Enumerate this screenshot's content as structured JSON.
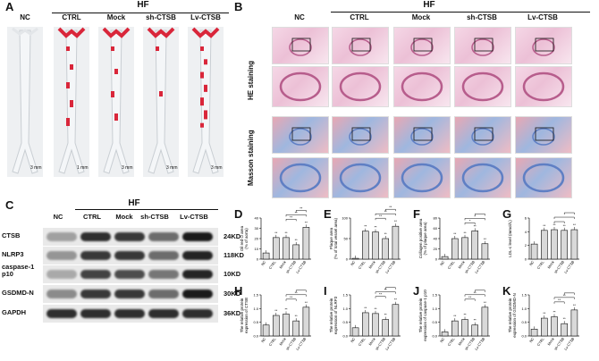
{
  "panelA": {
    "label": "A",
    "hf": "HF",
    "groups": [
      "NC",
      "CTRL",
      "Mock",
      "sh-CTSB",
      "Lv-CTSB"
    ],
    "scalebar": "3 mm",
    "scalebar_ctrl": "1 mm"
  },
  "panelB": {
    "label": "B",
    "hf": "HF",
    "groups": [
      "NC",
      "CTRL",
      "Mock",
      "sh-CTSB",
      "Lv-CTSB"
    ],
    "row1": "HE staining",
    "row2": "Masson staining"
  },
  "panelC": {
    "label": "C",
    "hf": "HF",
    "lanes": [
      "NC",
      "CTRL",
      "Mock",
      "sh-CTSB",
      "Lv-CTSB"
    ],
    "proteins": [
      {
        "name": "CTSB",
        "kd": "24KD",
        "intensity": [
          0.35,
          0.9,
          0.85,
          0.6,
          1.0
        ]
      },
      {
        "name": "NLRP3",
        "kd": "118KD",
        "intensity": [
          0.4,
          0.85,
          0.85,
          0.6,
          0.95
        ]
      },
      {
        "name": "caspase-1\np10",
        "kd": "10KD",
        "intensity": [
          0.3,
          0.8,
          0.75,
          0.55,
          0.95
        ]
      },
      {
        "name": "GSDMD-N",
        "kd": "30KD",
        "intensity": [
          0.45,
          0.85,
          0.85,
          0.6,
          1.0
        ]
      },
      {
        "name": "GAPDH",
        "kd": "36KD",
        "intensity": [
          0.9,
          0.9,
          0.9,
          0.9,
          0.9
        ]
      }
    ]
  },
  "chart_data": [
    {
      "label": "D",
      "type": "bar",
      "categories": [
        "NC",
        "CTRL",
        "Mock",
        "sh-CTSB",
        "Lv-CTSB"
      ],
      "values": [
        6,
        21,
        21,
        14,
        31
      ],
      "ylabel": "Oil red O area\n(% of aorta)",
      "ylim": [
        0,
        40
      ],
      "yticks": [
        0,
        10,
        20,
        30,
        40
      ],
      "sig": [
        "**",
        "**",
        "**",
        "**"
      ]
    },
    {
      "label": "E",
      "type": "bar",
      "categories": [
        "NC",
        "CTRL",
        "Mock",
        "sh-CTSB",
        "Lv-CTSB"
      ],
      "values": [
        2,
        68,
        66,
        50,
        80
      ],
      "ylabel": "Plaque area\n(% of total vessel area)",
      "ylim": [
        0,
        100
      ],
      "yticks": [
        0,
        50,
        100
      ],
      "sig": [
        "**",
        "**",
        "**",
        "**"
      ]
    },
    {
      "label": "F",
      "type": "bar",
      "categories": [
        "NC",
        "CTRL",
        "Mock",
        "sh-CTSB",
        "Lv-CTSB"
      ],
      "values": [
        5,
        40,
        42,
        55,
        30
      ],
      "ylabel": "Collagen positive area\n(% of plaque area)",
      "ylim": [
        0,
        80
      ],
      "yticks": [
        0,
        20,
        40,
        60,
        80
      ],
      "sig": [
        "**",
        "*",
        "*"
      ]
    },
    {
      "label": "G",
      "type": "bar",
      "categories": [
        "NC",
        "CTRL",
        "Mock",
        "sh-CTSB",
        "Lv-CTSB"
      ],
      "values": [
        2.2,
        4.2,
        4.3,
        4.2,
        4.3
      ],
      "ylabel": "LDL-c level (mmol/L)",
      "ylim": [
        0,
        6
      ],
      "yticks": [
        0,
        2,
        4,
        6
      ],
      "sig": [
        "**"
      ]
    },
    {
      "label": "H",
      "type": "bar",
      "categories": [
        "NC",
        "CTRL",
        "Mock",
        "sh-CTSB",
        "Lv-CTSB"
      ],
      "values": [
        0.4,
        0.75,
        0.8,
        0.55,
        1.05
      ],
      "ylabel": "The relative protein\nexpression of CTSB",
      "ylim": [
        0,
        1.5
      ],
      "yticks": [
        0.0,
        0.5,
        1.0,
        1.5
      ],
      "sig": [
        "**",
        "**",
        "**"
      ]
    },
    {
      "label": "I",
      "type": "bar",
      "categories": [
        "NC",
        "CTRL",
        "Mock",
        "sh-CTSB",
        "Lv-CTSB"
      ],
      "values": [
        0.3,
        0.85,
        0.82,
        0.6,
        1.15
      ],
      "ylabel": "The relative protein\nexpression of NLRP3",
      "ylim": [
        0,
        1.5
      ],
      "yticks": [
        0.0,
        0.5,
        1.0,
        1.5
      ],
      "sig": [
        "**",
        "**",
        "**"
      ]
    },
    {
      "label": "J",
      "type": "bar",
      "categories": [
        "NC",
        "CTRL",
        "Mock",
        "sh-CTSB",
        "Lv-CTSB"
      ],
      "values": [
        0.15,
        0.55,
        0.6,
        0.4,
        1.05
      ],
      "ylabel": "The relative protein\nexpression of caspase-1 p10",
      "ylim": [
        0,
        1.5
      ],
      "yticks": [
        0.0,
        0.5,
        1.0,
        1.5
      ],
      "sig": [
        "**",
        "**",
        "**"
      ]
    },
    {
      "label": "K",
      "type": "bar",
      "categories": [
        "NC",
        "CTRL",
        "Mock",
        "sh-CTSB",
        "Lv-CTSB"
      ],
      "values": [
        0.25,
        0.65,
        0.7,
        0.45,
        0.95
      ],
      "ylabel": "The relative protein\nexpression of GSDMD-N",
      "ylim": [
        0,
        1.5
      ],
      "yticks": [
        0.0,
        0.5,
        1.0,
        1.5
      ],
      "sig": [
        "**",
        "**",
        "**"
      ]
    }
  ],
  "colors": {
    "bar": "#d9d9d9",
    "aortaRed": "#d9263a"
  }
}
